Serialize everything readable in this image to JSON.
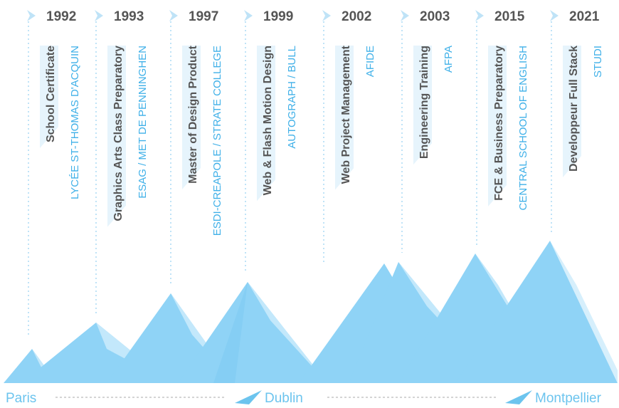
{
  "timeline": [
    {
      "year": "1992",
      "title": "School Certificate",
      "school": "LYCÉE  ST-THOMAS D'ACQUIN"
    },
    {
      "year": "1993",
      "title": "Graphics Arts Class Preparatory",
      "school": "ESAG  /  MET DE PENNINGHEN"
    },
    {
      "year": "1997",
      "title": "Master of Design Product",
      "school": "ESDI-CREAPOLE / STRATE COLLEGE"
    },
    {
      "year": "1999",
      "title": "Web & Flash Motion Design",
      "school": "AUTOGRAPH / BULL"
    },
    {
      "year": "2002",
      "title": "Web Project Management",
      "school": "AFIDE"
    },
    {
      "year": "2003",
      "title": "Engineering Training",
      "school": "AFPA"
    },
    {
      "year": "2015",
      "title": "FCE & Business Preparatory",
      "school": "CENTRAL SCHOOL OF ENGLISH"
    },
    {
      "year": "2021",
      "title": "Developpeur Full Stack",
      "school": "STUDI"
    }
  ],
  "locations": [
    "Paris",
    "Dublin",
    "Montpellier"
  ]
}
